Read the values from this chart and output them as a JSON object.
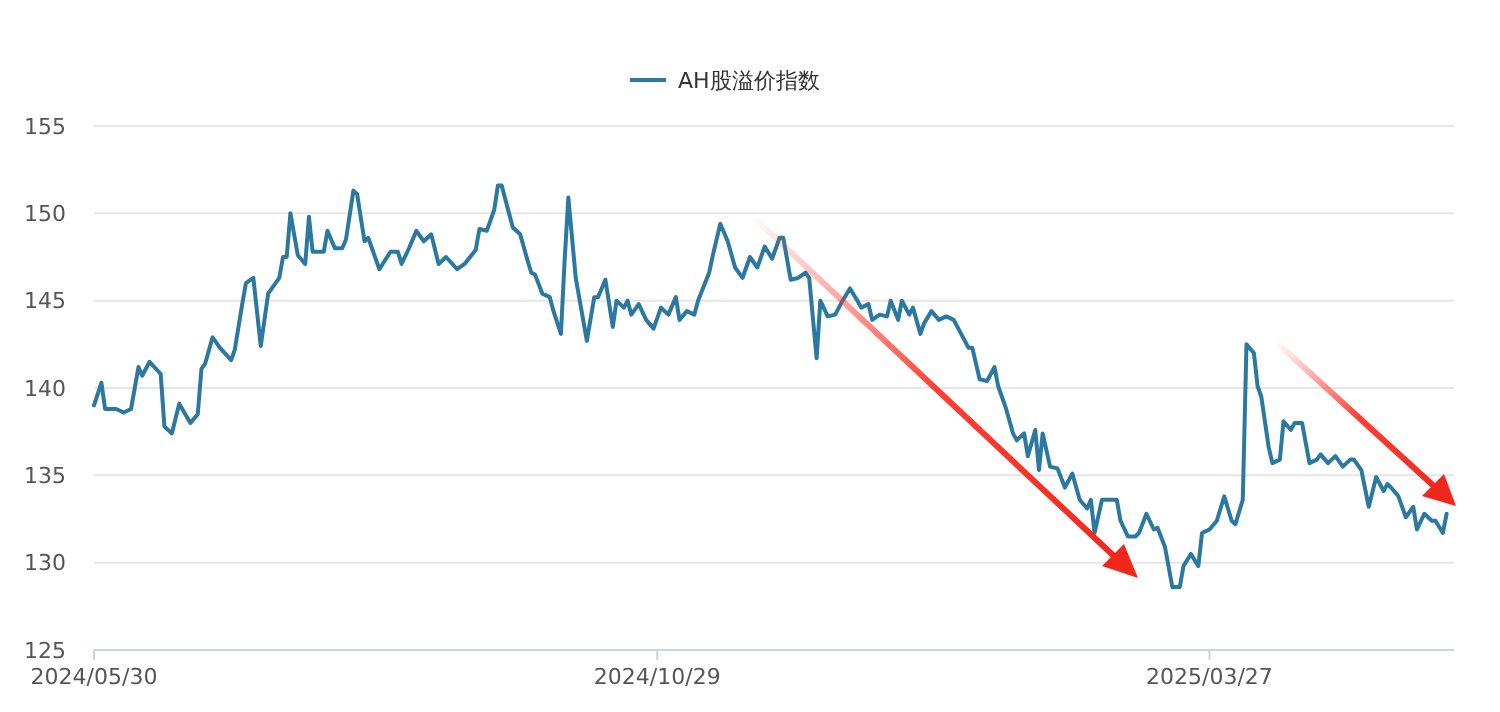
{
  "chart_data": {
    "type": "line",
    "legend": "top",
    "grid": "y",
    "marker": "none",
    "line_style": "solid",
    "xlim": [
      "2024-05-30",
      "2025-06-01"
    ],
    "xticks": [
      {
        "value": "2024-05-30",
        "label": "2024/05/30"
      },
      {
        "value": "2024-10-29",
        "label": "2024/10/29"
      },
      {
        "value": "2025-03-27",
        "label": "2025/03/27"
      }
    ],
    "ylim": [
      125,
      155
    ],
    "yticks": [
      125,
      130,
      135,
      140,
      145,
      150,
      155
    ],
    "series": [
      {
        "name": "AH股溢价指数",
        "color": "#2b78a0",
        "x": [
          "2024-05-30",
          "2024-06-01",
          "2024-06-02",
          "2024-06-05",
          "2024-06-07",
          "2024-06-09",
          "2024-06-11",
          "2024-06-12",
          "2024-06-14",
          "2024-06-17",
          "2024-06-18",
          "2024-06-20",
          "2024-06-22",
          "2024-06-25",
          "2024-06-27",
          "2024-06-28",
          "2024-06-29",
          "2024-07-01",
          "2024-07-03",
          "2024-07-06",
          "2024-07-07",
          "2024-07-09",
          "2024-07-10",
          "2024-07-12",
          "2024-07-14",
          "2024-07-16",
          "2024-07-19",
          "2024-07-20",
          "2024-07-21",
          "2024-07-22",
          "2024-07-24",
          "2024-07-26",
          "2024-07-27",
          "2024-07-28",
          "2024-07-31",
          "2024-08-01",
          "2024-08-03",
          "2024-08-05",
          "2024-08-06",
          "2024-08-08",
          "2024-08-09",
          "2024-08-11",
          "2024-08-12",
          "2024-08-15",
          "2024-08-18",
          "2024-08-20",
          "2024-08-21",
          "2024-08-23",
          "2024-08-25",
          "2024-08-27",
          "2024-08-29",
          "2024-08-31",
          "2024-09-02",
          "2024-09-05",
          "2024-09-07",
          "2024-09-10",
          "2024-09-11",
          "2024-09-13",
          "2024-09-15",
          "2024-09-16",
          "2024-09-17",
          "2024-09-20",
          "2024-09-22",
          "2024-09-24",
          "2024-09-25",
          "2024-09-26",
          "2024-09-28",
          "2024-09-30",
          "2024-10-01",
          "2024-10-03",
          "2024-10-04",
          "2024-10-05",
          "2024-10-07",
          "2024-10-10",
          "2024-10-12",
          "2024-10-13",
          "2024-10-15",
          "2024-10-17",
          "2024-10-18",
          "2024-10-20",
          "2024-10-21",
          "2024-10-22",
          "2024-10-24",
          "2024-10-26",
          "2024-10-28",
          "2024-10-30",
          "2024-11-01",
          "2024-11-03",
          "2024-11-04",
          "2024-11-06",
          "2024-11-08",
          "2024-11-09",
          "2024-11-12",
          "2024-11-13",
          "2024-11-15",
          "2024-11-17",
          "2024-11-19",
          "2024-11-21",
          "2024-11-23",
          "2024-11-25",
          "2024-11-27",
          "2024-11-29",
          "2024-12-01",
          "2024-12-02",
          "2024-12-04",
          "2024-12-06",
          "2024-12-08",
          "2024-12-09",
          "2024-12-11",
          "2024-12-12",
          "2024-12-14",
          "2024-12-16",
          "2024-12-18",
          "2024-12-20",
          "2024-12-22",
          "2024-12-23",
          "2024-12-25",
          "2024-12-26",
          "2024-12-28",
          "2024-12-30",
          "2024-12-31",
          "2025-01-02",
          "2025-01-03",
          "2025-01-05",
          "2025-01-06",
          "2025-01-08",
          "2025-01-09",
          "2025-01-11",
          "2025-01-13",
          "2025-01-15",
          "2025-01-17",
          "2025-01-18",
          "2025-01-21",
          "2025-01-22",
          "2025-01-24",
          "2025-01-26",
          "2025-01-28",
          "2025-01-29",
          "2025-01-31",
          "2025-02-02",
          "2025-02-03",
          "2025-02-05",
          "2025-02-06",
          "2025-02-08",
          "2025-02-09",
          "2025-02-10",
          "2025-02-12",
          "2025-02-14",
          "2025-02-16",
          "2025-02-18",
          "2025-02-20",
          "2025-02-22",
          "2025-02-23",
          "2025-02-24",
          "2025-02-26",
          "2025-02-28",
          "2025-03-02",
          "2025-03-03",
          "2025-03-05",
          "2025-03-07",
          "2025-03-08",
          "2025-03-10",
          "2025-03-12",
          "2025-03-13",
          "2025-03-15",
          "2025-03-17",
          "2025-03-19",
          "2025-03-20",
          "2025-03-22",
          "2025-03-24",
          "2025-03-25",
          "2025-03-27",
          "2025-03-29",
          "2025-03-31",
          "2025-04-02",
          "2025-04-03",
          "2025-04-05",
          "2025-04-06",
          "2025-04-08",
          "2025-04-09",
          "2025-04-10",
          "2025-04-12",
          "2025-04-13",
          "2025-04-15",
          "2025-04-16",
          "2025-04-18",
          "2025-04-19",
          "2025-04-21",
          "2025-04-23",
          "2025-04-25",
          "2025-04-26",
          "2025-04-28",
          "2025-04-30",
          "2025-05-02",
          "2025-05-04",
          "2025-05-05",
          "2025-05-07",
          "2025-05-09",
          "2025-05-11",
          "2025-05-13",
          "2025-05-14",
          "2025-05-15",
          "2025-05-17",
          "2025-05-19",
          "2025-05-21",
          "2025-05-22",
          "2025-05-24",
          "2025-05-26",
          "2025-05-27",
          "2025-05-29",
          "2025-05-30"
        ],
        "values": [
          139.0,
          140.3,
          138.8,
          138.8,
          138.6,
          138.8,
          141.2,
          140.7,
          141.5,
          140.8,
          137.8,
          137.4,
          139.1,
          138.0,
          138.5,
          141.1,
          141.4,
          142.9,
          142.3,
          141.6,
          142.2,
          144.8,
          146.0,
          146.3,
          142.4,
          145.4,
          146.3,
          147.5,
          147.5,
          150.0,
          147.6,
          147.1,
          149.8,
          147.8,
          147.8,
          149.0,
          148.0,
          148.0,
          148.5,
          151.3,
          151.1,
          148.4,
          148.6,
          146.8,
          147.8,
          147.8,
          147.1,
          148.0,
          149.0,
          148.4,
          148.8,
          147.1,
          147.5,
          146.8,
          147.1,
          147.9,
          149.1,
          149.0,
          150.2,
          151.6,
          151.6,
          149.2,
          148.8,
          147.3,
          146.6,
          146.5,
          145.4,
          145.2,
          144.4,
          143.1,
          147.3,
          150.9,
          146.3,
          142.7,
          145.2,
          145.2,
          146.2,
          143.5,
          145.0,
          144.6,
          145.0,
          144.2,
          144.8,
          143.9,
          143.4,
          144.6,
          144.2,
          145.2,
          143.9,
          144.4,
          144.2,
          145.0,
          146.6,
          147.6,
          149.4,
          148.4,
          146.9,
          146.3,
          147.5,
          146.9,
          148.1,
          147.4,
          148.6,
          148.6,
          146.2,
          146.3,
          146.6,
          146.3,
          141.7,
          145.0,
          144.1,
          144.2,
          145.0,
          145.7,
          145.0,
          144.6,
          144.8,
          143.9,
          144.2,
          144.1,
          145.0,
          143.9,
          145.0,
          144.2,
          144.6,
          143.1,
          143.7,
          144.4,
          143.9,
          144.1,
          143.9,
          143.5,
          142.3,
          142.3,
          140.5,
          140.4,
          141.2,
          140.1,
          138.9,
          137.4,
          137.0,
          137.4,
          136.1,
          137.6,
          135.3,
          137.4,
          135.5,
          135.4,
          134.3,
          135.1,
          133.6,
          133.1,
          133.6,
          131.7,
          133.6,
          133.6,
          133.6,
          132.4,
          131.5,
          131.5,
          131.7,
          132.8,
          131.9,
          132.0,
          130.9,
          128.6,
          128.6,
          129.8,
          130.5,
          129.8,
          131.7,
          131.9,
          132.4,
          133.8,
          132.4,
          132.2,
          133.6,
          142.5,
          142.0,
          140.1,
          139.5,
          136.6,
          135.7,
          135.9,
          138.1,
          137.6,
          138.0,
          138.0,
          135.7,
          135.9,
          136.2,
          135.7,
          136.1,
          135.5,
          135.9,
          135.9,
          135.3,
          133.2,
          134.9,
          134.1,
          134.5,
          134.3,
          133.8,
          132.6,
          133.2,
          131.9,
          132.8,
          132.4,
          132.4,
          131.7,
          132.8
        ]
      }
    ]
  }
}
